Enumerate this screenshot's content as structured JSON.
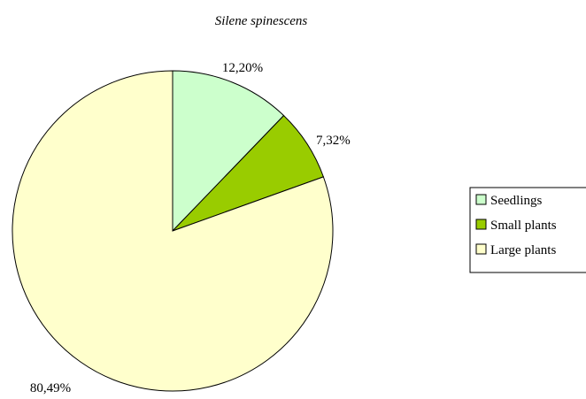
{
  "chart_data": {
    "type": "pie",
    "title": "Silene spinescens",
    "categories": [
      "Seedlings",
      "Small plants",
      "Large plants"
    ],
    "values": [
      12.2,
      7.32,
      80.49
    ],
    "data_labels": [
      "12,20%",
      "7,32%",
      "80,49%"
    ],
    "colors": [
      "#ccffcc",
      "#99cc00",
      "#ffffcc"
    ],
    "start_angle": "12 o'clock",
    "direction": "clockwise",
    "legend": {
      "position": "right",
      "entries": [
        "Seedlings",
        "Small plants",
        "Large plants"
      ]
    }
  }
}
